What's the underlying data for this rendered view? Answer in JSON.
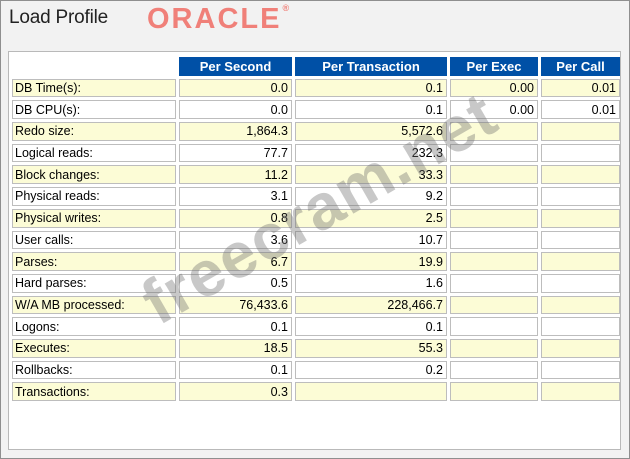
{
  "header": {
    "title": "Load Profile",
    "logo_text": "ORACLE",
    "logo_mark": "®",
    "logo_color": "#f08079"
  },
  "table": {
    "columns": [
      "",
      "Per Second",
      "Per Transaction",
      "Per Exec",
      "Per Call"
    ],
    "header_color": "#0050a6",
    "row_highlight_color": "#fcfcd6",
    "rows": [
      {
        "label": "DB Time(s):",
        "per_second": "0.0",
        "per_transaction": "0.1",
        "per_exec": "0.00",
        "per_call": "0.01"
      },
      {
        "label": "DB CPU(s):",
        "per_second": "0.0",
        "per_transaction": "0.1",
        "per_exec": "0.00",
        "per_call": "0.01"
      },
      {
        "label": "Redo size:",
        "per_second": "1,864.3",
        "per_transaction": "5,572.6",
        "per_exec": "",
        "per_call": ""
      },
      {
        "label": "Logical reads:",
        "per_second": "77.7",
        "per_transaction": "232.3",
        "per_exec": "",
        "per_call": ""
      },
      {
        "label": "Block changes:",
        "per_second": "11.2",
        "per_transaction": "33.3",
        "per_exec": "",
        "per_call": ""
      },
      {
        "label": "Physical reads:",
        "per_second": "3.1",
        "per_transaction": "9.2",
        "per_exec": "",
        "per_call": ""
      },
      {
        "label": "Physical writes:",
        "per_second": "0.8",
        "per_transaction": "2.5",
        "per_exec": "",
        "per_call": ""
      },
      {
        "label": "User calls:",
        "per_second": "3.6",
        "per_transaction": "10.7",
        "per_exec": "",
        "per_call": ""
      },
      {
        "label": "Parses:",
        "per_second": "6.7",
        "per_transaction": "19.9",
        "per_exec": "",
        "per_call": ""
      },
      {
        "label": "Hard parses:",
        "per_second": "0.5",
        "per_transaction": "1.6",
        "per_exec": "",
        "per_call": ""
      },
      {
        "label": "W/A MB processed:",
        "per_second": "76,433.6",
        "per_transaction": "228,466.7",
        "per_exec": "",
        "per_call": ""
      },
      {
        "label": "Logons:",
        "per_second": "0.1",
        "per_transaction": "0.1",
        "per_exec": "",
        "per_call": ""
      },
      {
        "label": "Executes:",
        "per_second": "18.5",
        "per_transaction": "55.3",
        "per_exec": "",
        "per_call": ""
      },
      {
        "label": "Rollbacks:",
        "per_second": "0.1",
        "per_transaction": "0.2",
        "per_exec": "",
        "per_call": ""
      },
      {
        "label": "Transactions:",
        "per_second": "0.3",
        "per_transaction": "",
        "per_exec": "",
        "per_call": ""
      }
    ]
  },
  "watermark": "freecram.net"
}
